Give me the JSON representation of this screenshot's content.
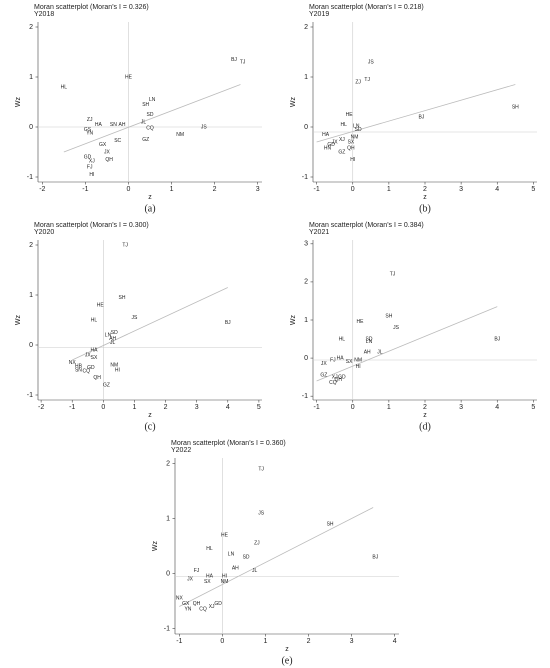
{
  "chart_data": [
    {
      "type": "scatter",
      "title": "Moran scatterplot (Moran's I = 0.326)",
      "subtitle": "Y2018",
      "x_label": "z",
      "y_label": "Wz",
      "panel_label": "(a)",
      "xlim": [
        -2.1,
        3.1
      ],
      "ylim": [
        -1.1,
        2.1
      ],
      "xticks": [
        -2,
        -1,
        0,
        1,
        2,
        3
      ],
      "yticks": [
        -1,
        0,
        1,
        2
      ],
      "ref_lines": {
        "x": 0,
        "y": 0
      },
      "fit_line": {
        "x": [
          -1.5,
          2.6
        ],
        "y": [
          -0.5,
          0.85
        ]
      },
      "points": {
        "labels": [
          "BJ",
          "TJ",
          "HL",
          "HE",
          "LN",
          "SH",
          "SD",
          "ZJ",
          "HA",
          "SN",
          "AH",
          "JL",
          "GS",
          "YN",
          "CQ",
          "JS",
          "NM",
          "GZ",
          "SC",
          "GX",
          "JX",
          "GD",
          "XJ",
          "QH",
          "FJ",
          "HI"
        ],
        "x": [
          2.45,
          2.65,
          -1.5,
          0,
          0.55,
          0.4,
          0.5,
          -0.9,
          -0.7,
          -0.35,
          -0.15,
          0.35,
          -0.95,
          -0.9,
          0.5,
          1.75,
          1.2,
          0.4,
          -0.25,
          -0.6,
          -0.5,
          -0.95,
          -0.85,
          -0.45,
          -0.9,
          -0.85
        ],
        "y": [
          1.35,
          1.3,
          0.8,
          1.0,
          0.55,
          0.45,
          0.25,
          0.15,
          0.05,
          0.05,
          0.05,
          0.1,
          -0.05,
          -0.12,
          -0.02,
          0.0,
          -0.15,
          -0.25,
          -0.27,
          -0.35,
          -0.5,
          -0.6,
          -0.68,
          -0.65,
          -0.8,
          -0.95
        ]
      },
      "color": "#222222",
      "fit_color": "#bbbbbb",
      "ref_color": "#cccccc"
    },
    {
      "type": "scatter",
      "title": "Moran scatterplot (Moran's I = 0.218)",
      "subtitle": "Y2019",
      "x_label": "z",
      "y_label": "Wz",
      "panel_label": "(b)",
      "xlim": [
        -1.1,
        5.1
      ],
      "ylim": [
        -1.1,
        2.1
      ],
      "xticks": [
        -1,
        0,
        1,
        2,
        3,
        4,
        5
      ],
      "yticks": [
        -1,
        0,
        1,
        2
      ],
      "ref_lines": {
        "x": 0,
        "y": -0.1
      },
      "fit_line": {
        "x": [
          -1.0,
          4.5
        ],
        "y": [
          -0.3,
          0.85
        ]
      },
      "points": {
        "labels": [
          "JS",
          "ZJ",
          "TJ",
          "HE",
          "BJ",
          "SH",
          "HL",
          "LN",
          "SD",
          "HA",
          "NM",
          "XJ",
          "JX",
          "GD",
          "HN",
          "SX",
          "QH",
          "GZ",
          "HI"
        ],
        "x": [
          0.5,
          0.15,
          0.4,
          -0.1,
          1.9,
          4.5,
          -0.25,
          0.1,
          0.15,
          -0.75,
          0.05,
          -0.3,
          -0.5,
          -0.6,
          -0.7,
          -0.05,
          -0.05,
          -0.3,
          0.0
        ],
        "y": [
          1.3,
          0.9,
          0.95,
          0.25,
          0.2,
          0.4,
          0.05,
          0.02,
          -0.05,
          -0.15,
          -0.2,
          -0.25,
          -0.3,
          -0.35,
          -0.42,
          -0.3,
          -0.42,
          -0.5,
          -0.65
        ]
      },
      "color": "#222222",
      "fit_color": "#bbbbbb",
      "ref_color": "#cccccc"
    },
    {
      "type": "scatter",
      "title": "Moran scatterplot (Moran's I = 0.300)",
      "subtitle": "Y2020",
      "x_label": "z",
      "y_label": "Wz",
      "panel_label": "(c)",
      "xlim": [
        -2.1,
        5.1
      ],
      "ylim": [
        -1.1,
        2.1
      ],
      "xticks": [
        -2,
        -1,
        0,
        1,
        2,
        3,
        4,
        5
      ],
      "yticks": [
        -1,
        0,
        1,
        2
      ],
      "ref_lines": {
        "x": 0,
        "y": -0.05
      },
      "fit_line": {
        "x": [
          -1.0,
          4.0
        ],
        "y": [
          -0.3,
          1.15
        ]
      },
      "points": {
        "labels": [
          "TJ",
          "SH",
          "HE",
          "HL",
          "JS",
          "BJ",
          "LN",
          "SD",
          "AH",
          "JL",
          "HA",
          "JX",
          "SX",
          "NX",
          "HB",
          "SN",
          "GD",
          "CQ",
          "QH",
          "NM",
          "HI",
          "GZ"
        ],
        "x": [
          0.7,
          0.6,
          -0.1,
          -0.3,
          1.0,
          4.0,
          0.15,
          0.35,
          0.3,
          0.3,
          -0.3,
          -0.5,
          -0.3,
          -1.0,
          -0.8,
          -0.8,
          -0.4,
          -0.55,
          -0.2,
          0.35,
          0.45,
          0.1
        ],
        "y": [
          2.0,
          0.95,
          0.8,
          0.5,
          0.55,
          0.45,
          0.2,
          0.25,
          0.13,
          0.05,
          -0.1,
          -0.2,
          -0.25,
          -0.35,
          -0.42,
          -0.5,
          -0.45,
          -0.52,
          -0.65,
          -0.4,
          -0.5,
          -0.8
        ]
      },
      "color": "#222222",
      "fit_color": "#bbbbbb",
      "ref_color": "#cccccc"
    },
    {
      "type": "scatter",
      "title": "Moran scatterplot (Moran's I = 0.384)",
      "subtitle": "Y2021",
      "x_label": "z",
      "y_label": "Wz",
      "panel_label": "(d)",
      "xlim": [
        -1.1,
        5.1
      ],
      "ylim": [
        -1.1,
        3.1
      ],
      "xticks": [
        -1,
        0,
        1,
        2,
        3,
        4,
        5
      ],
      "yticks": [
        -1,
        0,
        1,
        2,
        3
      ],
      "ref_lines": {
        "x": 0,
        "y": -0.05
      },
      "fit_line": {
        "x": [
          -1.0,
          4.0
        ],
        "y": [
          -0.6,
          1.35
        ]
      },
      "points": {
        "labels": [
          "TJ",
          "SH",
          "HE",
          "JS",
          "HL",
          "SD",
          "LN",
          "BJ",
          "AH",
          "JL",
          "HA",
          "FJ",
          "NM",
          "SX",
          "JX",
          "HI",
          "GZ",
          "XJ",
          "GD",
          "QH",
          "CQ"
        ],
        "x": [
          1.1,
          1.0,
          0.2,
          1.2,
          -0.3,
          0.45,
          0.45,
          4.0,
          0.4,
          0.75,
          -0.35,
          -0.55,
          0.15,
          -0.1,
          -0.8,
          0.15,
          -0.8,
          -0.5,
          -0.3,
          -0.4,
          -0.55
        ],
        "y": [
          2.2,
          1.1,
          0.95,
          0.8,
          0.5,
          0.5,
          0.43,
          0.5,
          0.15,
          0.15,
          0.0,
          -0.05,
          -0.05,
          -0.1,
          -0.15,
          -0.22,
          -0.45,
          -0.5,
          -0.5,
          -0.57,
          -0.65
        ]
      },
      "color": "#222222",
      "fit_color": "#bbbbbb",
      "ref_color": "#cccccc"
    },
    {
      "type": "scatter",
      "title": "Moran scatterplot (Moran's I = 0.360)",
      "subtitle": "Y2022",
      "x_label": "z",
      "y_label": "Wz",
      "panel_label": "(e)",
      "xlim": [
        -1.1,
        4.1
      ],
      "ylim": [
        -1.1,
        2.1
      ],
      "xticks": [
        -1,
        0,
        1,
        2,
        3,
        4
      ],
      "yticks": [
        -1,
        0,
        1,
        2
      ],
      "ref_lines": {
        "x": 0,
        "y": -0.05
      },
      "fit_line": {
        "x": [
          -1.0,
          3.5
        ],
        "y": [
          -0.6,
          1.2
        ]
      },
      "points": {
        "labels": [
          "TJ",
          "JS",
          "SH",
          "HE",
          "ZJ",
          "HL",
          "LN",
          "SD",
          "BJ",
          "AH",
          "JL",
          "FJ",
          "JX",
          "HA",
          "SX",
          "HI",
          "NM",
          "NX",
          "GX",
          "QH",
          "GD",
          "XJ",
          "CQ",
          "YN"
        ],
        "x": [
          0.9,
          0.9,
          2.5,
          0.05,
          0.8,
          -0.3,
          0.2,
          0.55,
          3.55,
          0.3,
          0.75,
          -0.6,
          -0.75,
          -0.3,
          -0.35,
          0.05,
          0.05,
          -1.0,
          -0.85,
          -0.6,
          -0.1,
          -0.25,
          -0.45,
          -0.8
        ],
        "y": [
          1.9,
          1.1,
          0.9,
          0.7,
          0.55,
          0.45,
          0.35,
          0.3,
          0.3,
          0.1,
          0.05,
          0.05,
          -0.1,
          -0.05,
          -0.15,
          -0.05,
          -0.15,
          -0.45,
          -0.55,
          -0.55,
          -0.55,
          -0.6,
          -0.65,
          -0.65
        ]
      },
      "color": "#222222",
      "fit_color": "#bbbbbb",
      "ref_color": "#cccccc"
    }
  ]
}
